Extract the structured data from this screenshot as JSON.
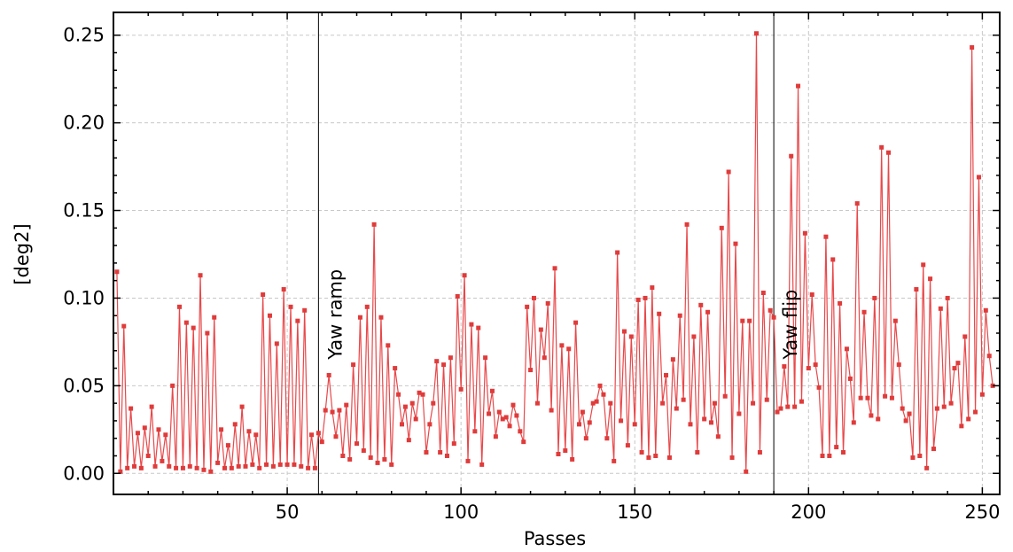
{
  "chart_data": {
    "type": "line",
    "xlabel": "Passes",
    "ylabel": "[deg2]",
    "xlim": [
      0,
      255
    ],
    "ylim": [
      -0.012,
      0.263
    ],
    "xticks": [
      50,
      100,
      150,
      200,
      250
    ],
    "xtick_labels": [
      "50",
      "100",
      "150",
      "200",
      "250"
    ],
    "yticks": [
      0.0,
      0.05,
      0.1,
      0.15,
      0.2,
      0.25
    ],
    "ytick_labels": [
      "0.00",
      "0.05",
      "0.10",
      "0.15",
      "0.20",
      "0.25"
    ],
    "grid": true,
    "series_color": "#e03b3b",
    "annotations": [
      {
        "x": 59,
        "label": "Yaw ramp"
      },
      {
        "x": 190,
        "label": "Yaw flip"
      }
    ],
    "series": [
      {
        "values": [
          0.115,
          0.001,
          0.084,
          0.003,
          0.037,
          0.004,
          0.023,
          0.003,
          0.026,
          0.01,
          0.038,
          0.004,
          0.025,
          0.007,
          0.022,
          0.004,
          0.05,
          0.003,
          0.095,
          0.003,
          0.086,
          0.004,
          0.083,
          0.003,
          0.113,
          0.002,
          0.08,
          0.001,
          0.089,
          0.006,
          0.025,
          0.003,
          0.016,
          0.003,
          0.028,
          0.004,
          0.038,
          0.004,
          0.024,
          0.005,
          0.022,
          0.003,
          0.102,
          0.005,
          0.09,
          0.004,
          0.074,
          0.005,
          0.105,
          0.005,
          0.095,
          0.005,
          0.087,
          0.004,
          0.093,
          0.003,
          0.022,
          0.003,
          0.023,
          0.018,
          0.036,
          0.056,
          0.035,
          0.021,
          0.036,
          0.01,
          0.039,
          0.008,
          0.062,
          0.017,
          0.089,
          0.013,
          0.095,
          0.009,
          0.142,
          0.006,
          0.089,
          0.008,
          0.073,
          0.005,
          0.06,
          0.045,
          0.028,
          0.038,
          0.019,
          0.04,
          0.031,
          0.046,
          0.045,
          0.012,
          0.028,
          0.04,
          0.064,
          0.012,
          0.062,
          0.01,
          0.066,
          0.017,
          0.101,
          0.048,
          0.113,
          0.007,
          0.085,
          0.024,
          0.083,
          0.005,
          0.066,
          0.034,
          0.047,
          0.021,
          0.035,
          0.031,
          0.032,
          0.027,
          0.039,
          0.033,
          0.024,
          0.018,
          0.095,
          0.059,
          0.1,
          0.04,
          0.082,
          0.066,
          0.097,
          0.036,
          0.117,
          0.011,
          0.073,
          0.013,
          0.071,
          0.008,
          0.086,
          0.028,
          0.035,
          0.02,
          0.029,
          0.04,
          0.041,
          0.05,
          0.045,
          0.02,
          0.04,
          0.007,
          0.126,
          0.03,
          0.081,
          0.016,
          0.078,
          0.028,
          0.099,
          0.012,
          0.1,
          0.009,
          0.106,
          0.01,
          0.091,
          0.04,
          0.056,
          0.009,
          0.065,
          0.037,
          0.09,
          0.042,
          0.142,
          0.028,
          0.078,
          0.012,
          0.096,
          0.031,
          0.092,
          0.029,
          0.04,
          0.021,
          0.14,
          0.044,
          0.172,
          0.009,
          0.131,
          0.034,
          0.087,
          0.001,
          0.087,
          0.04,
          0.251,
          0.012,
          0.103,
          0.042,
          0.093,
          0.089,
          0.035,
          0.037,
          0.061,
          0.038,
          0.181,
          0.038,
          0.221,
          0.041,
          0.137,
          0.06,
          0.102,
          0.062,
          0.049,
          0.01,
          0.135,
          0.01,
          0.122,
          0.015,
          0.097,
          0.012,
          0.071,
          0.054,
          0.029,
          0.154,
          0.043,
          0.092,
          0.043,
          0.033,
          0.1,
          0.031,
          0.186,
          0.044,
          0.183,
          0.043,
          0.087,
          0.062,
          0.037,
          0.03,
          0.034,
          0.009,
          0.105,
          0.01,
          0.119,
          0.003,
          0.111,
          0.014,
          0.037,
          0.094,
          0.038,
          0.1,
          0.04,
          0.06,
          0.063,
          0.027,
          0.078,
          0.031,
          0.243,
          0.035,
          0.169,
          0.045,
          0.093,
          0.067,
          0.05
        ]
      }
    ]
  }
}
